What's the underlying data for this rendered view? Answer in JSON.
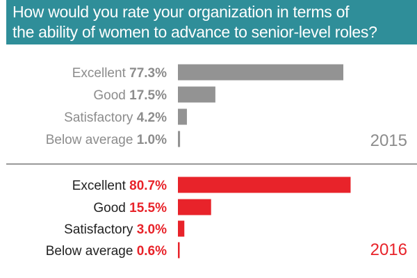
{
  "title_lines": [
    "How would you rate your organization in terms of",
    "the ability of women to advance to senior-level roles?"
  ],
  "colors": {
    "title_bg": "#2f8e99",
    "series_2015": "#939393",
    "series_2016": "#e8232a",
    "label_2015": "#8c8c8c",
    "label_2016": "#222222"
  },
  "chart_data": {
    "type": "bar",
    "orientation": "horizontal",
    "categories": [
      "Excellent",
      "Good",
      "Satisfactory",
      "Below average"
    ],
    "series": [
      {
        "name": "2015",
        "values": [
          77.3,
          17.5,
          4.2,
          1.0
        ],
        "labels": [
          "77.3%",
          "17.5%",
          "4.2%",
          "1.0%"
        ]
      },
      {
        "name": "2016",
        "values": [
          80.7,
          15.5,
          3.0,
          0.6
        ],
        "labels": [
          "80.7%",
          "15.5%",
          "3.0%",
          "0.6%"
        ]
      }
    ]
  }
}
